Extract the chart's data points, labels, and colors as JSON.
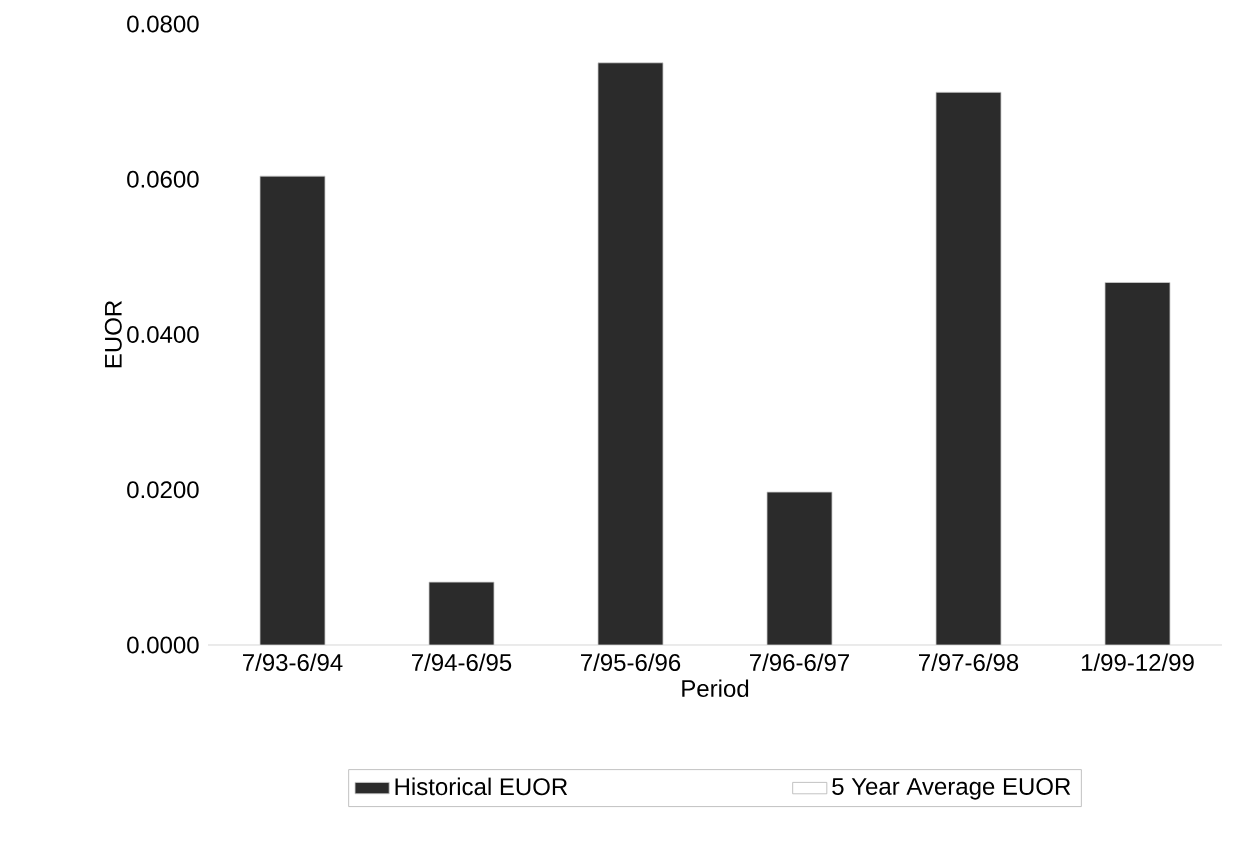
{
  "chart_data": {
    "type": "bar",
    "xlabel": "Period",
    "ylabel": "EUOR",
    "categories": [
      "7/93-6/94",
      "7/94-6/95",
      "7/95-6/96",
      "7/96-6/97",
      "7/97-6/98",
      "1/99-12/99"
    ],
    "series": [
      {
        "name": "Historical EUOR",
        "color": "#2b2b2b",
        "values": [
          0.0604,
          0.0081,
          0.075,
          0.0197,
          0.0712,
          0.0467
        ]
      },
      {
        "name": "5 Year Average EUOR",
        "color": "#ffffff",
        "values": [
          null,
          null,
          null,
          null,
          null,
          null
        ]
      }
    ],
    "ylim": [
      0,
      0.08
    ],
    "yticks": [
      {
        "value": 0,
        "label": "0.0000"
      },
      {
        "value": 0.02,
        "label": "0.0200"
      },
      {
        "value": 0.04,
        "label": "0.0400"
      },
      {
        "value": 0.06,
        "label": "0.0600"
      },
      {
        "value": 0.08,
        "label": "0.0800"
      }
    ],
    "legend": "bottom"
  }
}
